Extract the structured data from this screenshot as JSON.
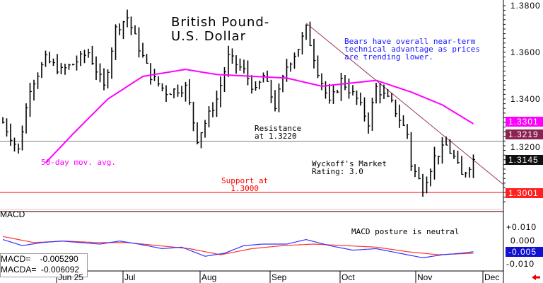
{
  "chart_data": {
    "type": "ohlc",
    "title": "British Pound-U.S. Dollar",
    "title_lines": [
      "British Pound-",
      "U.S. Dollar"
    ],
    "y_ticks": [
      "1.3800",
      "1.3600",
      "1.3400",
      "1.3200"
    ],
    "ylim": [
      1.292,
      1.3824
    ],
    "x_ticks": [
      "Jun 25",
      "Jul",
      "Aug",
      "Sep",
      "Oct",
      "Nov",
      "Dec"
    ],
    "price_keypoints": [
      [
        0,
        1.33
      ],
      [
        4,
        1.318
      ],
      [
        7,
        1.345
      ],
      [
        11,
        1.357
      ],
      [
        15,
        1.352
      ],
      [
        18,
        1.355
      ],
      [
        22,
        1.36
      ],
      [
        26,
        1.345
      ],
      [
        29,
        1.37
      ],
      [
        32,
        1.375
      ],
      [
        35,
        1.362
      ],
      [
        38,
        1.35
      ],
      [
        42,
        1.343
      ],
      [
        47,
        1.345
      ],
      [
        50,
        1.323
      ],
      [
        55,
        1.34
      ],
      [
        58,
        1.358
      ],
      [
        62,
        1.352
      ],
      [
        65,
        1.343
      ],
      [
        67,
        1.35
      ],
      [
        70,
        1.337
      ],
      [
        73,
        1.354
      ],
      [
        76,
        1.362
      ],
      [
        78,
        1.37
      ],
      [
        81,
        1.352
      ],
      [
        84,
        1.338
      ],
      [
        87,
        1.348
      ],
      [
        91,
        1.34
      ],
      [
        94,
        1.33
      ],
      [
        96,
        1.345
      ],
      [
        100,
        1.338
      ],
      [
        104,
        1.325
      ],
      [
        105,
        1.312
      ],
      [
        108,
        1.302
      ],
      [
        111,
        1.315
      ],
      [
        114,
        1.32
      ],
      [
        116,
        1.315
      ],
      [
        118,
        1.307
      ],
      [
        121,
        1.314
      ]
    ],
    "ma50_label": "50-day mov. avg.",
    "ma50_keypoints": [
      [
        11,
        1.3127
      ],
      [
        18,
        1.325
      ],
      [
        27,
        1.34
      ],
      [
        36,
        1.3497
      ],
      [
        47,
        1.3527
      ],
      [
        55,
        1.3505
      ],
      [
        73,
        1.349
      ],
      [
        82,
        1.3455
      ],
      [
        96,
        1.348
      ],
      [
        105,
        1.343
      ],
      [
        113,
        1.3375
      ],
      [
        121,
        1.3294
      ]
    ],
    "macd_ticks": [
      "+0.010",
      "0.000",
      "-0.010"
    ],
    "macd_ylim": [
      -0.018,
      0.02
    ],
    "macd_keypoints": [
      [
        0,
        0.003
      ],
      [
        5,
        -0.001
      ],
      [
        10,
        0.001
      ],
      [
        15,
        0.002
      ],
      [
        20,
        0.001
      ],
      [
        25,
        0.0
      ],
      [
        30,
        0.002
      ],
      [
        35,
        0.0
      ],
      [
        41,
        -0.003
      ],
      [
        46,
        -0.002
      ],
      [
        52,
        -0.008
      ],
      [
        57,
        -0.006
      ],
      [
        62,
        -0.001
      ],
      [
        67,
        0.0
      ],
      [
        73,
        0.0
      ],
      [
        78,
        0.003
      ],
      [
        84,
        -0.001
      ],
      [
        90,
        -0.004
      ],
      [
        96,
        -0.003
      ],
      [
        102,
        -0.006
      ],
      [
        108,
        -0.009
      ],
      [
        113,
        -0.007
      ],
      [
        118,
        -0.006
      ],
      [
        121,
        -0.005
      ]
    ],
    "macda_keypoints": [
      [
        0,
        0.005
      ],
      [
        8,
        0.001
      ],
      [
        16,
        0.002
      ],
      [
        24,
        0.001
      ],
      [
        32,
        0.001
      ],
      [
        40,
        -0.001
      ],
      [
        48,
        -0.003
      ],
      [
        56,
        -0.007
      ],
      [
        64,
        -0.003
      ],
      [
        72,
        -0.001
      ],
      [
        80,
        0.0
      ],
      [
        88,
        -0.001
      ],
      [
        96,
        -0.002
      ],
      [
        104,
        -0.005
      ],
      [
        112,
        -0.007
      ],
      [
        121,
        -0.006
      ]
    ],
    "resistance": 1.322,
    "support": 1.3,
    "trendline": [
      [
        78,
        1.3725
      ],
      [
        129,
        1.303
      ]
    ]
  },
  "annotations": {
    "bears": "Bears have overall near-term\ntechnical advantage as prices\nare trending lower.",
    "resistance": "Resistance\nat 1.3220",
    "support": "Support at\n  1.3000",
    "rating": "Wyckoff's Market\nRating: 3.0",
    "macd_posture": "MACD posture is neutral",
    "macd_title": "MACD"
  },
  "tags": {
    "ma": "1.3301",
    "resistance": "1.3219",
    "last": "1.3145",
    "support": "1.3001",
    "macd": "-0.005"
  },
  "readout": {
    "macd": "MACD=    -0.005290",
    "macda": "MACDA=  -0.006092"
  },
  "colors": {
    "ma": "#ff00ff",
    "trend": "#993366",
    "support": "#ff0000",
    "macd": "#3333ff",
    "macda": "#ff3333"
  }
}
